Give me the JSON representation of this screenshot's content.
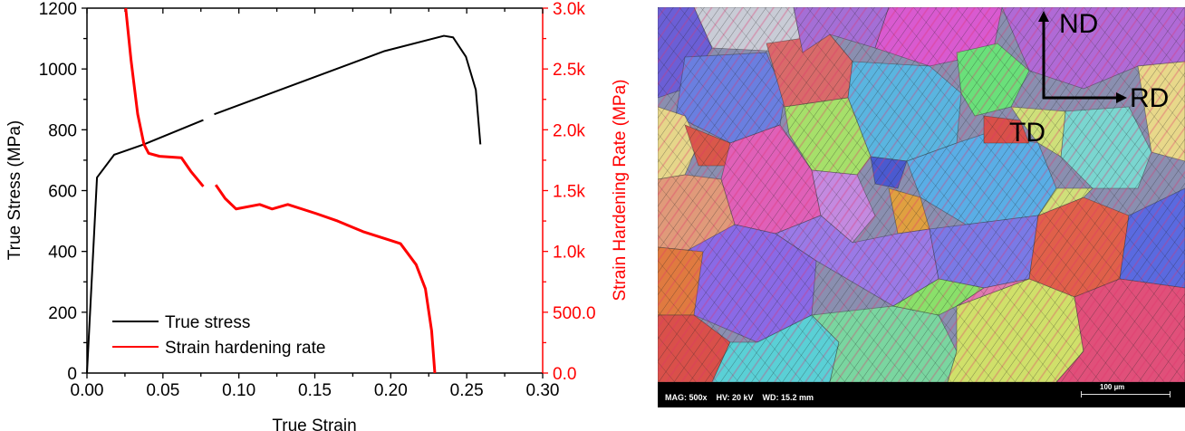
{
  "chart_data": {
    "type": "line",
    "xlabel": "True Strain",
    "ylabel": "True Stress (MPa)",
    "y2label": "Strain Hardening Rate (MPa)",
    "xlim": [
      0,
      0.3
    ],
    "ylim": [
      0,
      1200
    ],
    "y2lim": [
      0,
      3000
    ],
    "xticks": [
      "0.00",
      "0.05",
      "0.10",
      "0.15",
      "0.20",
      "0.25",
      "0.30"
    ],
    "yticks": [
      "0",
      "200",
      "400",
      "600",
      "800",
      "1000",
      "1200"
    ],
    "y2ticks": [
      "0.0",
      "500.0",
      "1.0k",
      "1.5k",
      "2.0k",
      "2.5k",
      "3.0k"
    ],
    "grid": false,
    "legend_position": "bottom-left",
    "series": [
      {
        "name": "True stress",
        "axis": "left",
        "color": "#000000",
        "segments": [
          [
            [
              0,
              0
            ],
            [
              0.0066,
              643
            ],
            [
              0.0179,
              718
            ],
            [
              0.0375,
              752
            ],
            [
              0.0766,
              832
            ]
          ],
          [
            [
              0.0838,
              851
            ],
            [
              0.1507,
              975
            ],
            [
              0.196,
              1059
            ],
            [
              0.235,
              1109
            ],
            [
              0.241,
              1104
            ],
            [
              0.2495,
              1040
            ],
            [
              0.256,
              931
            ],
            [
              0.259,
              752
            ]
          ]
        ]
      },
      {
        "name": "Strain hardening rate",
        "axis": "right",
        "color": "#ff0000",
        "segments": [
          [
            [
              0.0255,
              3000
            ],
            [
              0.029,
              2574
            ],
            [
              0.0334,
              2128
            ],
            [
              0.0375,
              1881
            ],
            [
              0.0406,
              1807
            ],
            [
              0.0478,
              1782
            ],
            [
              0.0622,
              1770
            ],
            [
              0.0684,
              1658
            ],
            [
              0.0766,
              1534
            ]
          ],
          [
            [
              0.0848,
              1547
            ],
            [
              0.091,
              1435
            ],
            [
              0.0982,
              1349
            ],
            [
              0.1137,
              1386
            ],
            [
              0.1219,
              1349
            ],
            [
              0.1322,
              1386
            ],
            [
              0.1507,
              1312
            ],
            [
              0.165,
              1250
            ],
            [
              0.1817,
              1163
            ],
            [
              0.2002,
              1089
            ],
            [
              0.2064,
              1064
            ],
            [
              0.2167,
              891
            ],
            [
              0.2228,
              693
            ],
            [
              0.2269,
              347
            ],
            [
              0.229,
              0
            ]
          ]
        ]
      }
    ]
  },
  "micrograph": {
    "directions": {
      "nd": "ND",
      "rd": "RD",
      "td": "TD"
    },
    "info_bar": "MAG: 500x    HV: 20 kV    WD: 15.2 mm",
    "scale_label": "100 µm"
  }
}
